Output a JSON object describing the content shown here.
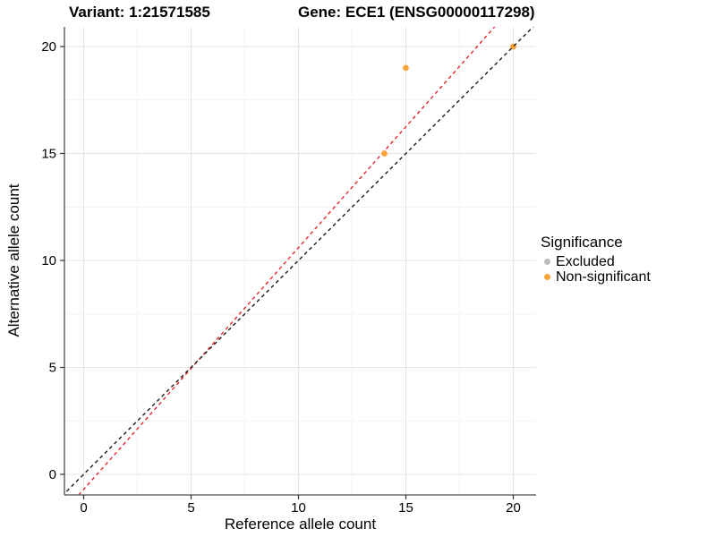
{
  "legend": {
    "title": "Significance",
    "items": [
      {
        "label": "Excluded",
        "color": "#BEBEBE"
      },
      {
        "label": "Non-significant",
        "color": "#FBA338"
      }
    ]
  },
  "chart_data": {
    "type": "scatter",
    "title_left": "Variant: 1:21571585",
    "title_right": "Gene: ECE1 (ENSG00000117298)",
    "xlabel": "Reference allele count",
    "ylabel": "Alternative allele count",
    "xlim": [
      -0.9,
      21.0
    ],
    "ylim": [
      -0.96,
      20.9
    ],
    "x_ticks": [
      0,
      5,
      10,
      15,
      20
    ],
    "y_ticks": [
      0,
      5,
      10,
      15,
      20
    ],
    "x_minor_ticks": [
      2.5,
      7.5,
      12.5,
      17.5
    ],
    "y_minor_ticks": [
      2.5,
      7.5,
      12.5,
      17.5
    ],
    "grid": true,
    "legend_position": "right-middle",
    "series": [
      {
        "name": "Excluded",
        "color": "#BEBEBE",
        "points": []
      },
      {
        "name": "Non-significant",
        "color": "#FBA338",
        "points": [
          [
            14,
            15
          ],
          [
            15,
            19
          ],
          [
            20,
            20
          ]
        ]
      }
    ],
    "lines": [
      {
        "name": "fit-line",
        "color": "#E8242A",
        "dashed": true,
        "slope": 1.13,
        "intercept": -0.7
      },
      {
        "name": "identity-line",
        "color": "#1A1A1A",
        "dashed": true,
        "slope": 1,
        "intercept": 0
      }
    ]
  },
  "colors": {
    "grid_major": "#E4E4E4",
    "grid_minor": "#F2F2F2",
    "axis_line": "#4D4D4D",
    "tick_mark": "#333333",
    "tick_label": "#000000"
  }
}
